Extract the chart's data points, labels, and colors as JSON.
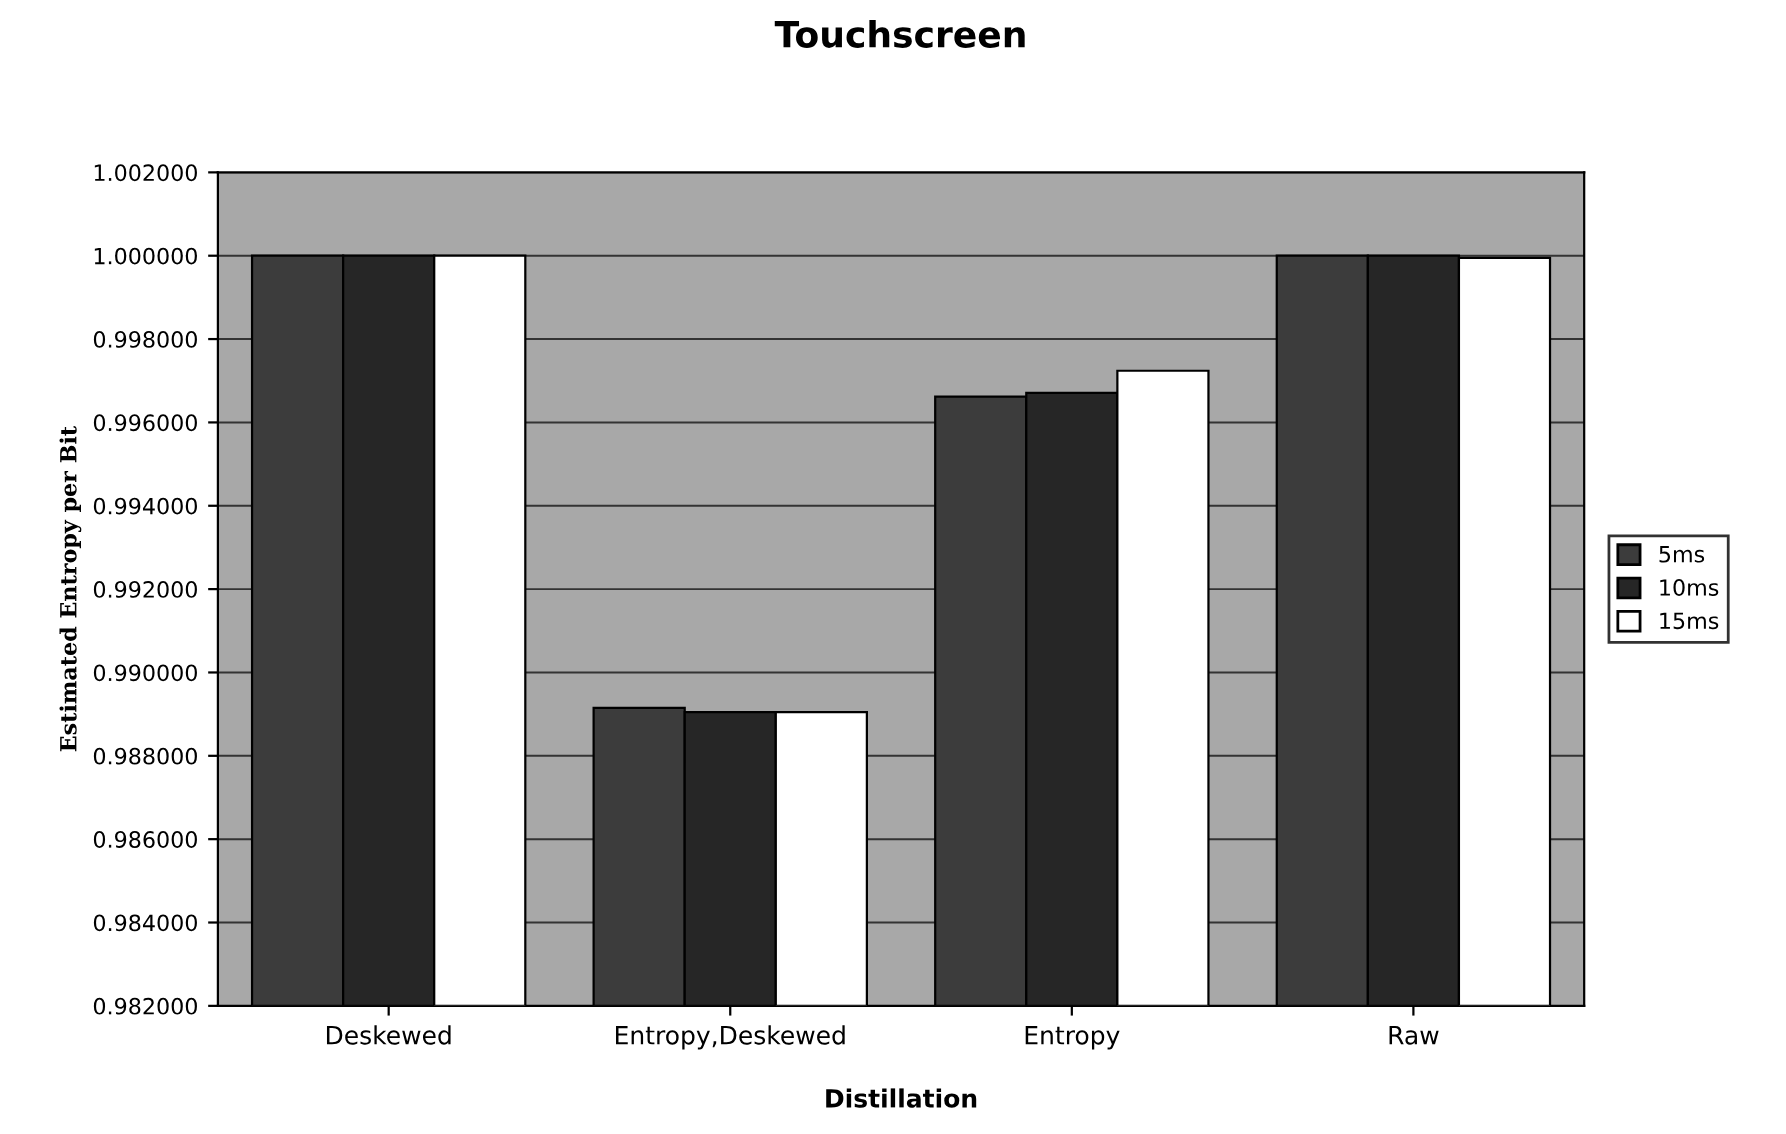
{
  "chart_data": {
    "type": "bar",
    "title": "Touchscreen",
    "xlabel": "Distillation",
    "ylabel": "Estimated Entropy per Bit",
    "categories": [
      "Deskewed",
      "Entropy,Deskewed",
      "Entropy",
      "Raw"
    ],
    "series": [
      {
        "name": "5ms",
        "color": "#3c3c3c",
        "values": [
          1.0,
          0.98915,
          0.99662,
          1.0
        ]
      },
      {
        "name": "10ms",
        "color": "#262626",
        "values": [
          1.0,
          0.98905,
          0.99671,
          1.0
        ]
      },
      {
        "name": "15ms",
        "color": "#ffffff",
        "values": [
          1.0,
          0.98905,
          0.99724,
          0.99995
        ]
      }
    ],
    "ylim": [
      0.982,
      1.002
    ],
    "yticks": [
      {
        "value": 0.982,
        "label": "0.982000"
      },
      {
        "value": 0.984,
        "label": "0.984000"
      },
      {
        "value": 0.986,
        "label": "0.986000"
      },
      {
        "value": 0.988,
        "label": "0.988000"
      },
      {
        "value": 0.99,
        "label": "0.990000"
      },
      {
        "value": 0.992,
        "label": "0.992000"
      },
      {
        "value": 0.994,
        "label": "0.994000"
      },
      {
        "value": 0.996,
        "label": "0.996000"
      },
      {
        "value": 0.998,
        "label": "0.998000"
      },
      {
        "value": 1.0,
        "label": "1.000000"
      },
      {
        "value": 1.002,
        "label": "1.002000"
      }
    ],
    "grid": "y",
    "legend": "right"
  }
}
